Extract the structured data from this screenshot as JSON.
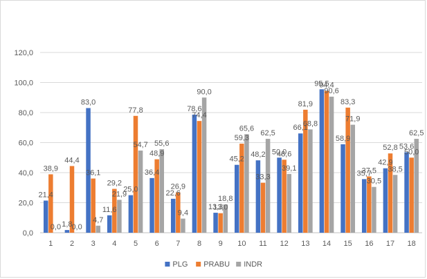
{
  "chart_data": {
    "type": "bar",
    "title": "",
    "xlabel": "",
    "ylabel": "",
    "ylim": [
      0,
      120
    ],
    "ytick_step": 20,
    "ytick_labels": [
      "0,0",
      "20,0",
      "40,0",
      "60,0",
      "80,0",
      "100,0",
      "120,0"
    ],
    "grid": true,
    "legend_position": "bottom",
    "categories": [
      "1",
      "2",
      "3",
      "4",
      "5",
      "6",
      "7",
      "8",
      "9",
      "10",
      "11",
      "12",
      "13",
      "14",
      "15",
      "16",
      "17",
      "18"
    ],
    "series": [
      {
        "name": "PLG",
        "color": "#4472C4",
        "values": [
          21.4,
          1.8,
          83.0,
          11.6,
          25.0,
          36.4,
          22.6,
          78.6,
          13.3,
          45.2,
          48.2,
          50.0,
          66.1,
          95.5,
          58.9,
          35.7,
          42.9,
          53.6
        ],
        "labels": [
          "21,4",
          "1,8",
          "83,0",
          "11,6",
          "25,0",
          "36,4",
          "22,6",
          "78,6",
          "13,3",
          "45,2",
          "48,2",
          "50,0",
          "66,1",
          "95,5",
          "58,9",
          "35,7",
          "42,9",
          "53,6"
        ]
      },
      {
        "name": "PRABU",
        "color": "#ED7D31",
        "values": [
          38.9,
          44.4,
          36.1,
          29.2,
          77.8,
          48.9,
          26.9,
          74.4,
          13.0,
          59.3,
          33.3,
          48.6,
          81.9,
          94.4,
          83.3,
          37.5,
          52.8,
          50.0
        ],
        "labels": [
          "38,9",
          "44,4",
          "36,1",
          "29,2",
          "77,8",
          "48,9",
          "26,9",
          "74,4",
          "13,0",
          "59,3",
          "33,3",
          "48,6",
          "81,9",
          "94,4",
          "83,3",
          "37,5",
          "52,8",
          "50,0"
        ]
      },
      {
        "name": "INDR",
        "color": "#A5A5A5",
        "values": [
          0.0,
          0.0,
          4.7,
          21.9,
          54.7,
          55.6,
          9.4,
          90.0,
          18.8,
          65.6,
          62.5,
          39.1,
          68.8,
          90.6,
          71.9,
          30.5,
          38.5,
          62.5
        ],
        "labels": [
          "0,0",
          "0,0",
          "4,7",
          "21,9",
          "54,7",
          "55,6",
          "9,4",
          "90,0",
          "18,8",
          "65,6",
          "62,5",
          "39,1",
          "68,8",
          "90,6",
          "71,9",
          "30,5",
          "38,5",
          "62,5"
        ]
      }
    ]
  }
}
